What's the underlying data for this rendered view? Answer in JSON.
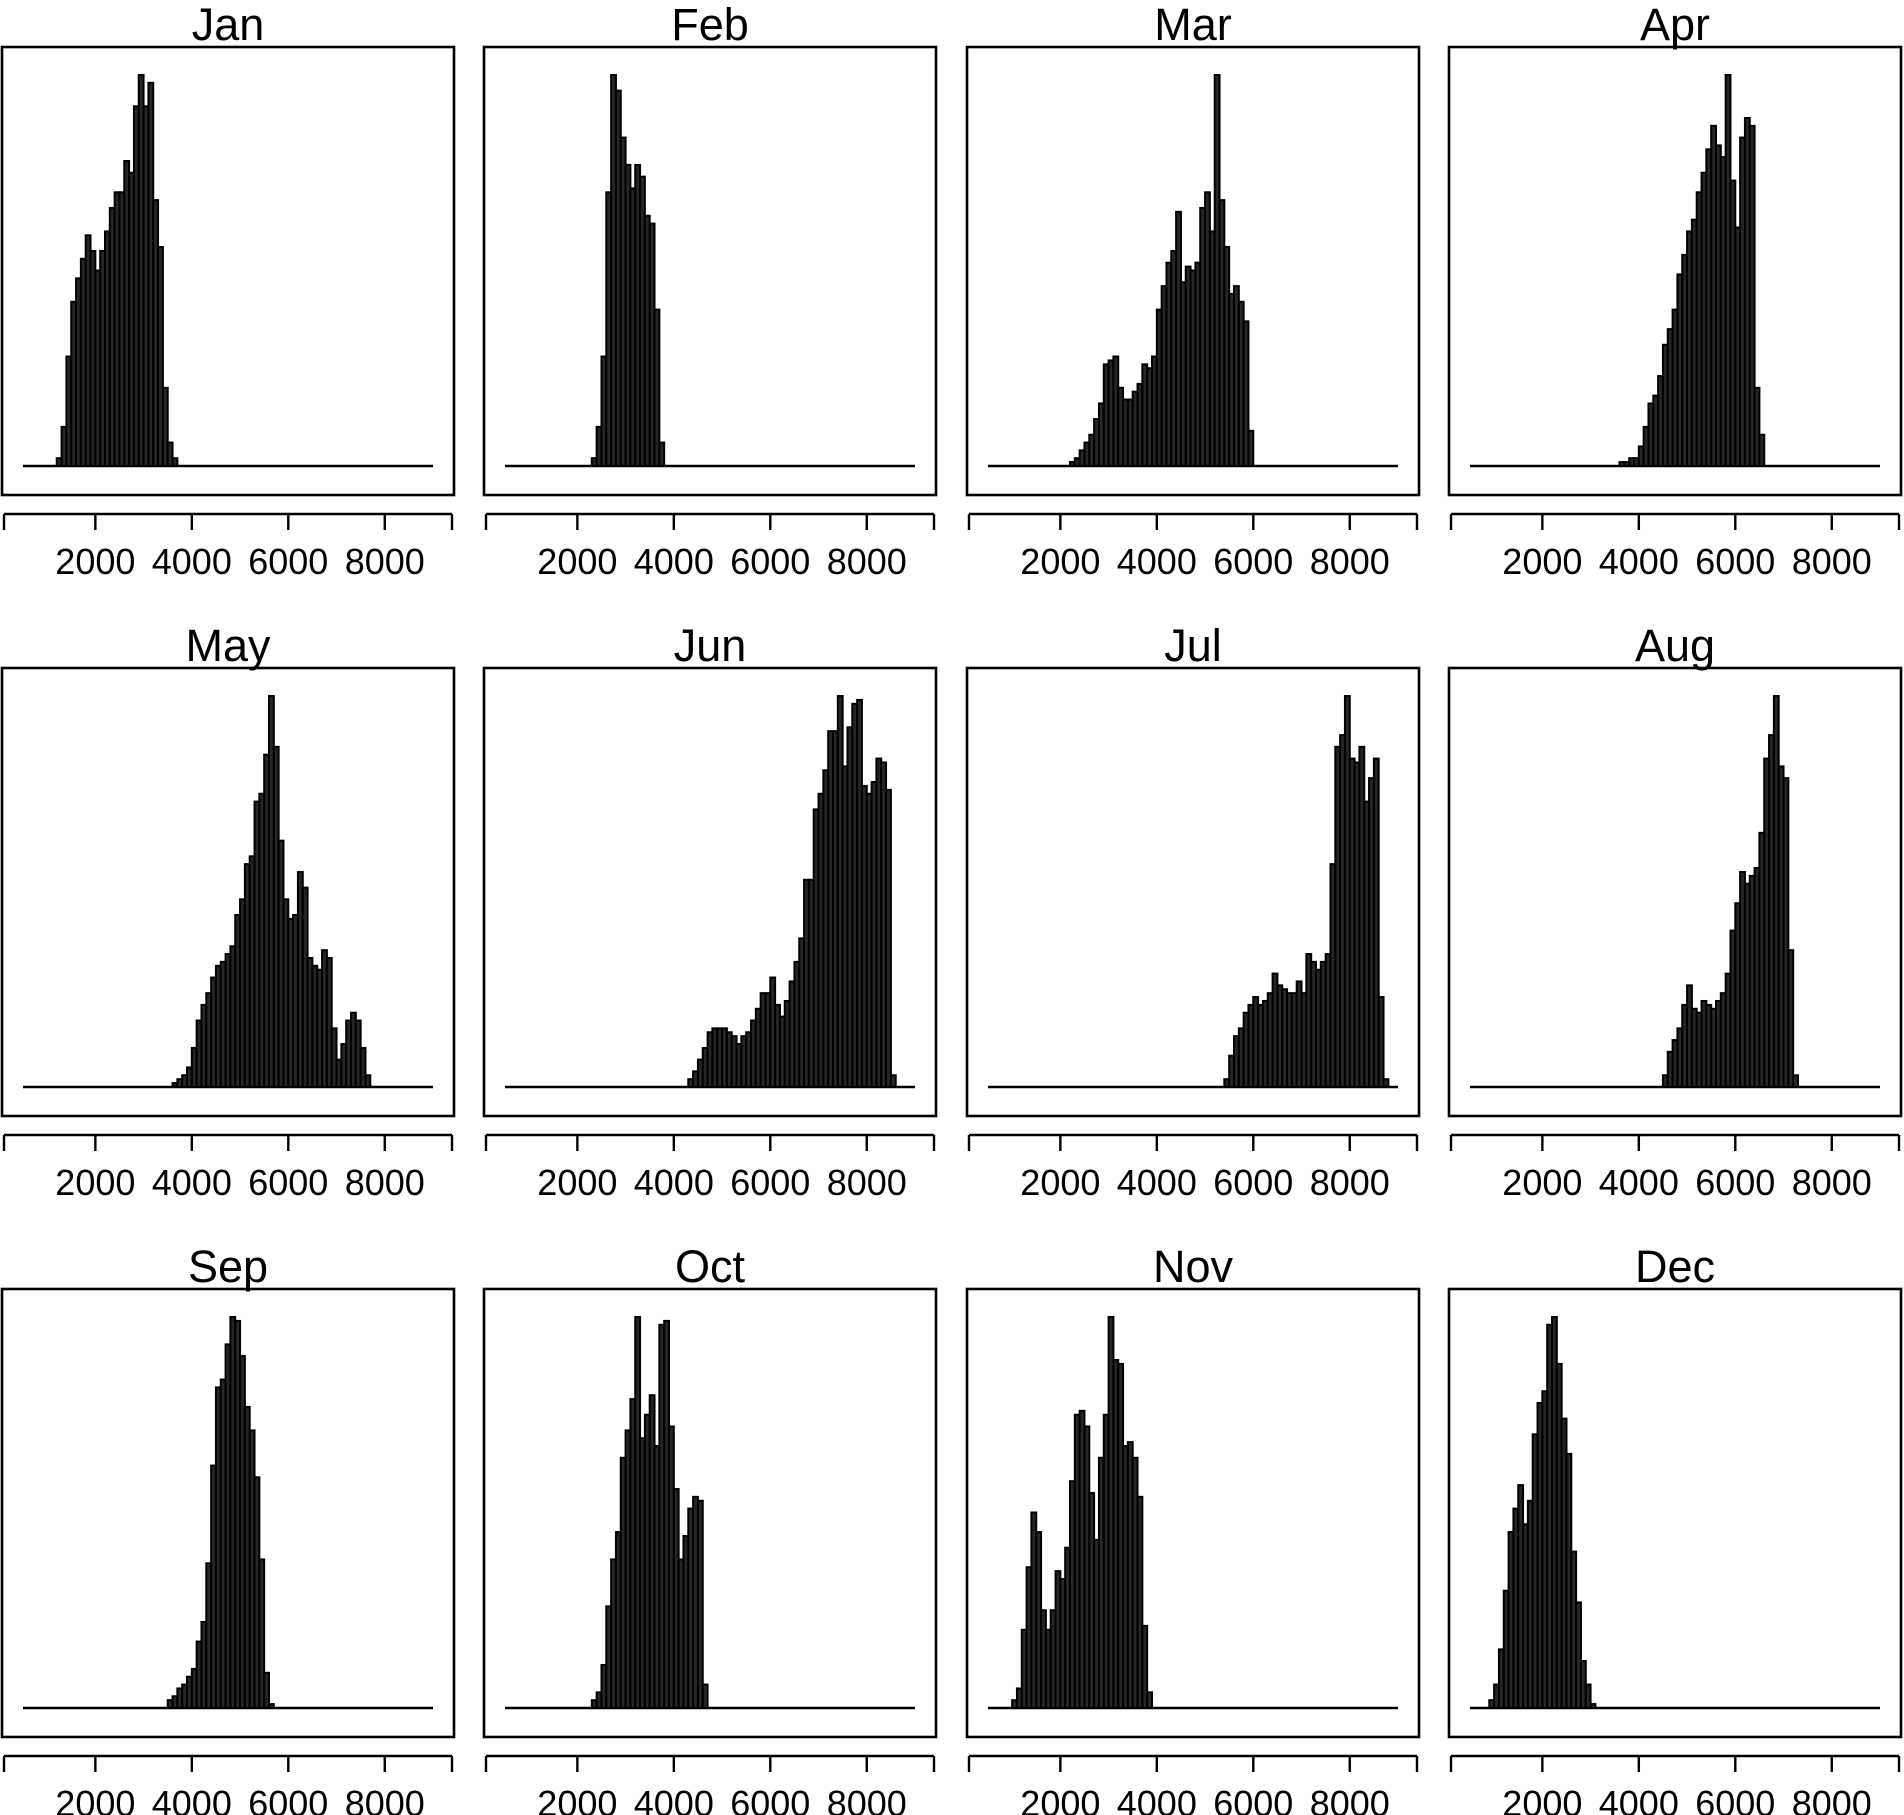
{
  "chart_data": [
    {
      "type": "bar",
      "title": "Jan",
      "xlim": [
        500,
        9000
      ],
      "xticks": [
        2000,
        4000,
        6000,
        8000
      ],
      "bin_width": 100,
      "bin_start": 1200,
      "values": [
        2,
        10,
        28,
        42,
        48,
        53,
        59,
        55,
        50,
        55,
        60,
        66,
        70,
        70,
        78,
        75,
        92,
        100,
        92,
        98,
        68,
        56,
        20,
        6,
        2
      ]
    },
    {
      "type": "bar",
      "title": "Feb",
      "xlim": [
        500,
        9000
      ],
      "xticks": [
        2000,
        4000,
        6000,
        8000
      ],
      "bin_width": 100,
      "bin_start": 2300,
      "values": [
        2,
        10,
        28,
        70,
        100,
        96,
        84,
        77,
        71,
        77,
        74,
        64,
        62,
        40,
        6
      ]
    },
    {
      "type": "bar",
      "title": "Mar",
      "xlim": [
        500,
        9000
      ],
      "xticks": [
        2000,
        4000,
        6000,
        8000
      ],
      "bin_width": 100,
      "bin_start": 2200,
      "values": [
        1,
        2,
        4,
        6,
        8,
        12,
        16,
        26,
        27,
        28,
        20,
        17,
        17,
        19,
        21,
        26,
        25,
        28,
        40,
        46,
        52,
        55,
        65,
        47,
        51,
        50,
        52,
        66,
        70,
        60,
        100,
        68,
        56,
        44,
        46,
        42,
        37,
        9
      ]
    },
    {
      "type": "bar",
      "title": "Apr",
      "xlim": [
        500,
        9000
      ],
      "xticks": [
        2000,
        4000,
        6000,
        8000
      ],
      "bin_width": 100,
      "bin_start": 3600,
      "values": [
        1,
        1,
        2,
        2,
        5,
        10,
        16,
        18,
        23,
        31,
        35,
        40,
        49,
        54,
        60,
        63,
        70,
        75,
        81,
        87,
        82,
        79,
        100,
        73,
        61,
        84,
        89,
        87,
        20,
        8
      ]
    },
    {
      "type": "bar",
      "title": "May",
      "xlim": [
        500,
        9000
      ],
      "xticks": [
        2000,
        4000,
        6000,
        8000
      ],
      "bin_width": 100,
      "bin_start": 3600,
      "values": [
        1,
        2,
        3,
        5,
        10,
        17,
        21,
        24,
        28,
        31,
        32,
        34,
        36,
        44,
        48,
        57,
        59,
        73,
        75,
        85,
        100,
        87,
        63,
        48,
        43,
        44,
        55,
        51,
        33,
        31,
        30,
        35,
        33,
        15,
        7,
        11,
        17,
        19,
        17,
        10,
        3
      ]
    },
    {
      "type": "bar",
      "title": "Jun",
      "xlim": [
        500,
        9000
      ],
      "xticks": [
        2000,
        4000,
        6000,
        8000
      ],
      "bin_width": 100,
      "bin_start": 4300,
      "values": [
        2,
        4,
        7,
        10,
        14,
        15,
        15,
        15,
        14,
        13,
        11,
        13,
        14,
        17,
        20,
        24,
        24,
        28,
        21,
        18,
        22,
        27,
        32,
        38,
        53,
        53,
        71,
        75,
        81,
        91,
        91,
        100,
        82,
        92,
        98,
        99,
        77,
        75,
        78,
        84,
        83,
        76,
        3
      ]
    },
    {
      "type": "bar",
      "title": "Jul",
      "xlim": [
        500,
        9000
      ],
      "xticks": [
        2000,
        4000,
        6000,
        8000
      ],
      "bin_width": 100,
      "bin_start": 5400,
      "values": [
        2,
        8,
        13,
        15,
        19,
        21,
        23,
        21,
        22,
        24,
        29,
        26,
        25,
        24,
        24,
        27,
        24,
        34,
        32,
        30,
        32,
        34,
        57,
        87,
        90,
        100,
        84,
        83,
        87,
        73,
        79,
        84,
        23,
        2
      ]
    },
    {
      "type": "bar",
      "title": "Aug",
      "xlim": [
        500,
        9000
      ],
      "xticks": [
        2000,
        4000,
        6000,
        8000
      ],
      "bin_width": 100,
      "bin_start": 4500,
      "values": [
        3,
        9,
        12,
        15,
        21,
        26,
        20,
        19,
        22,
        21,
        20,
        22,
        24,
        29,
        40,
        47,
        55,
        52,
        54,
        56,
        65,
        84,
        90,
        100,
        82,
        79,
        35,
        3
      ]
    },
    {
      "type": "bar",
      "title": "Sep",
      "xlim": [
        500,
        9000
      ],
      "xticks": [
        2000,
        4000,
        6000,
        8000
      ],
      "bin_width": 100,
      "bin_start": 3500,
      "values": [
        2,
        3,
        5,
        6,
        8,
        10,
        17,
        22,
        37,
        62,
        82,
        84,
        93,
        100,
        99,
        90,
        77,
        71,
        59,
        38,
        9,
        1
      ]
    },
    {
      "type": "bar",
      "title": "Oct",
      "xlim": [
        500,
        9000
      ],
      "xticks": [
        2000,
        4000,
        6000,
        8000
      ],
      "bin_width": 100,
      "bin_start": 2300,
      "values": [
        2,
        4,
        11,
        26,
        38,
        45,
        64,
        71,
        79,
        100,
        69,
        75,
        80,
        67,
        98,
        99,
        72,
        56,
        38,
        44,
        51,
        54,
        53,
        6
      ]
    },
    {
      "type": "bar",
      "title": "Nov",
      "xlim": [
        500,
        9000
      ],
      "xticks": [
        2000,
        4000,
        6000,
        8000
      ],
      "bin_width": 100,
      "bin_start": 1000,
      "values": [
        2,
        5,
        20,
        36,
        50,
        45,
        25,
        20,
        25,
        35,
        33,
        41,
        58,
        75,
        76,
        72,
        55,
        43,
        64,
        75,
        100,
        89,
        88,
        67,
        68,
        64,
        54,
        21,
        4
      ]
    },
    {
      "type": "bar",
      "title": "Dec",
      "xlim": [
        500,
        9000
      ],
      "xticks": [
        2000,
        4000,
        6000,
        8000
      ],
      "bin_width": 100,
      "bin_start": 900,
      "values": [
        2,
        6,
        15,
        30,
        45,
        51,
        57,
        47,
        53,
        70,
        78,
        81,
        98,
        100,
        88,
        74,
        65,
        40,
        27,
        12,
        6,
        1
      ]
    }
  ]
}
